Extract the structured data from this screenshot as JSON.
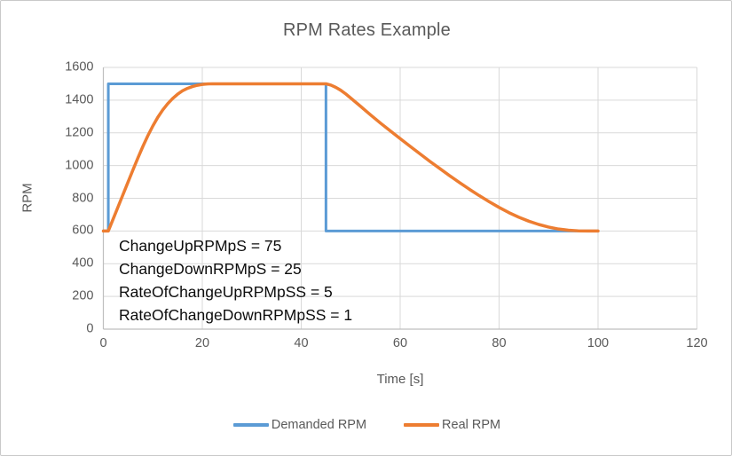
{
  "chart_data": {
    "type": "line",
    "title": "RPM Rates Example",
    "xlabel": "Time [s]",
    "ylabel": "RPM",
    "xlim": [
      0,
      120
    ],
    "ylim": [
      0,
      1600
    ],
    "x_ticks": [
      0,
      20,
      40,
      60,
      80,
      100,
      120
    ],
    "y_ticks": [
      0,
      200,
      400,
      600,
      800,
      1000,
      1200,
      1400,
      1600
    ],
    "grid": true,
    "legend_position": "bottom-center",
    "series": [
      {
        "name": "Demanded RPM",
        "color": "#5B9BD5",
        "stroke_width": 3,
        "points": [
          [
            0,
            600
          ],
          [
            1,
            600
          ],
          [
            1,
            1500
          ],
          [
            45,
            1500
          ],
          [
            45,
            600
          ],
          [
            100,
            600
          ]
        ]
      },
      {
        "name": "Real RPM",
        "color": "#ED7D31",
        "stroke_width": 3.5,
        "points": [
          [
            0,
            600
          ],
          [
            1,
            600
          ],
          [
            2,
            675
          ],
          [
            3,
            750
          ],
          [
            4,
            825
          ],
          [
            5,
            900
          ],
          [
            6,
            975
          ],
          [
            7,
            1048
          ],
          [
            8,
            1118
          ],
          [
            9,
            1183
          ],
          [
            10,
            1242
          ],
          [
            11,
            1295
          ],
          [
            12,
            1340
          ],
          [
            13,
            1378
          ],
          [
            14,
            1410
          ],
          [
            15,
            1436
          ],
          [
            16,
            1457
          ],
          [
            17,
            1472
          ],
          [
            18,
            1483
          ],
          [
            19,
            1491
          ],
          [
            20,
            1496
          ],
          [
            21,
            1499
          ],
          [
            22,
            1500
          ],
          [
            45,
            1500
          ],
          [
            46,
            1492
          ],
          [
            47,
            1478
          ],
          [
            48,
            1460
          ],
          [
            49,
            1438
          ],
          [
            50,
            1413
          ],
          [
            52,
            1362
          ],
          [
            54,
            1310
          ],
          [
            56,
            1260
          ],
          [
            58,
            1212
          ],
          [
            60,
            1165
          ],
          [
            62,
            1118
          ],
          [
            64,
            1072
          ],
          [
            66,
            1026
          ],
          [
            68,
            982
          ],
          [
            70,
            938
          ],
          [
            72,
            896
          ],
          [
            74,
            855
          ],
          [
            76,
            816
          ],
          [
            78,
            779
          ],
          [
            80,
            744
          ],
          [
            82,
            712
          ],
          [
            84,
            684
          ],
          [
            86,
            660
          ],
          [
            88,
            640
          ],
          [
            90,
            624
          ],
          [
            92,
            612
          ],
          [
            94,
            605
          ],
          [
            96,
            601
          ],
          [
            98,
            600
          ],
          [
            100,
            600
          ]
        ]
      }
    ],
    "annotation": {
      "lines": [
        "ChangeUpRPMpS = 75",
        "ChangeDownRPMpS = 25",
        "RateOfChangeUpRPMpSS = 5",
        "RateOfChangeDownRPMpSS = 1"
      ]
    }
  },
  "colors": {
    "gridline": "#D9D9D9",
    "axis_line": "#BFBFBF",
    "tick_text": "#595959",
    "title_text": "#595959",
    "annotation_text": "#0d0d0d"
  }
}
